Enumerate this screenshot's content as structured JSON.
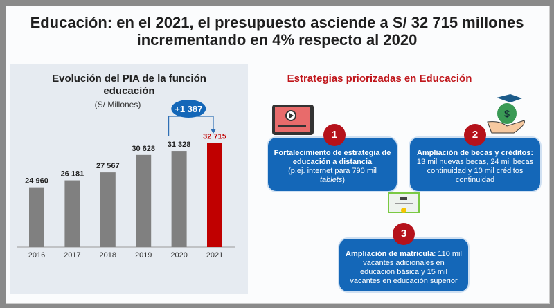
{
  "header": {
    "line1": "Educación: en el 2021, el presupuesto asciende a S/ 32 715 millones",
    "line2": "incrementando en 4% respecto al 2020"
  },
  "chart_data": {
    "type": "bar",
    "title": "Evolución del PIA de la función educación",
    "subtitle": "(S/ Millones)",
    "categories": [
      "2016",
      "2017",
      "2018",
      "2019",
      "2020",
      "2021"
    ],
    "values": [
      24960,
      26181,
      27567,
      30628,
      31328,
      32715
    ],
    "value_labels": [
      "24 960",
      "26 181",
      "27 567",
      "30 628",
      "31 328",
      "32 715"
    ],
    "ylim": [
      14500,
      34000
    ],
    "highlight": {
      "category": "2021",
      "color": "#c00000"
    },
    "bar_color": "#808080",
    "annotation": "+1 387",
    "grid": false
  },
  "strategies": {
    "title": "Estrategias priorizadas en Educación",
    "items": [
      {
        "num": "1",
        "bold": "Fortalecimiento de estrategia de educación a distancia",
        "text": "(p.ej. internet para 790 mil",
        "italic": "tablets",
        "tail": ")"
      },
      {
        "num": "2",
        "bold": "Ampliación de becas y créditos:",
        "text": " 13 mil nuevas becas, 24 mil becas continuidad y 10 mil créditos continuidad"
      },
      {
        "num": "3",
        "bold": "Ampliación de matricula",
        "text": ": 110 mil vacantes adicionales en educación básica y 15 mil vacantes en educación superior"
      }
    ]
  },
  "colors": {
    "box": "#1467b8",
    "badge": "#b5121b",
    "accent_red": "#c0161b"
  }
}
